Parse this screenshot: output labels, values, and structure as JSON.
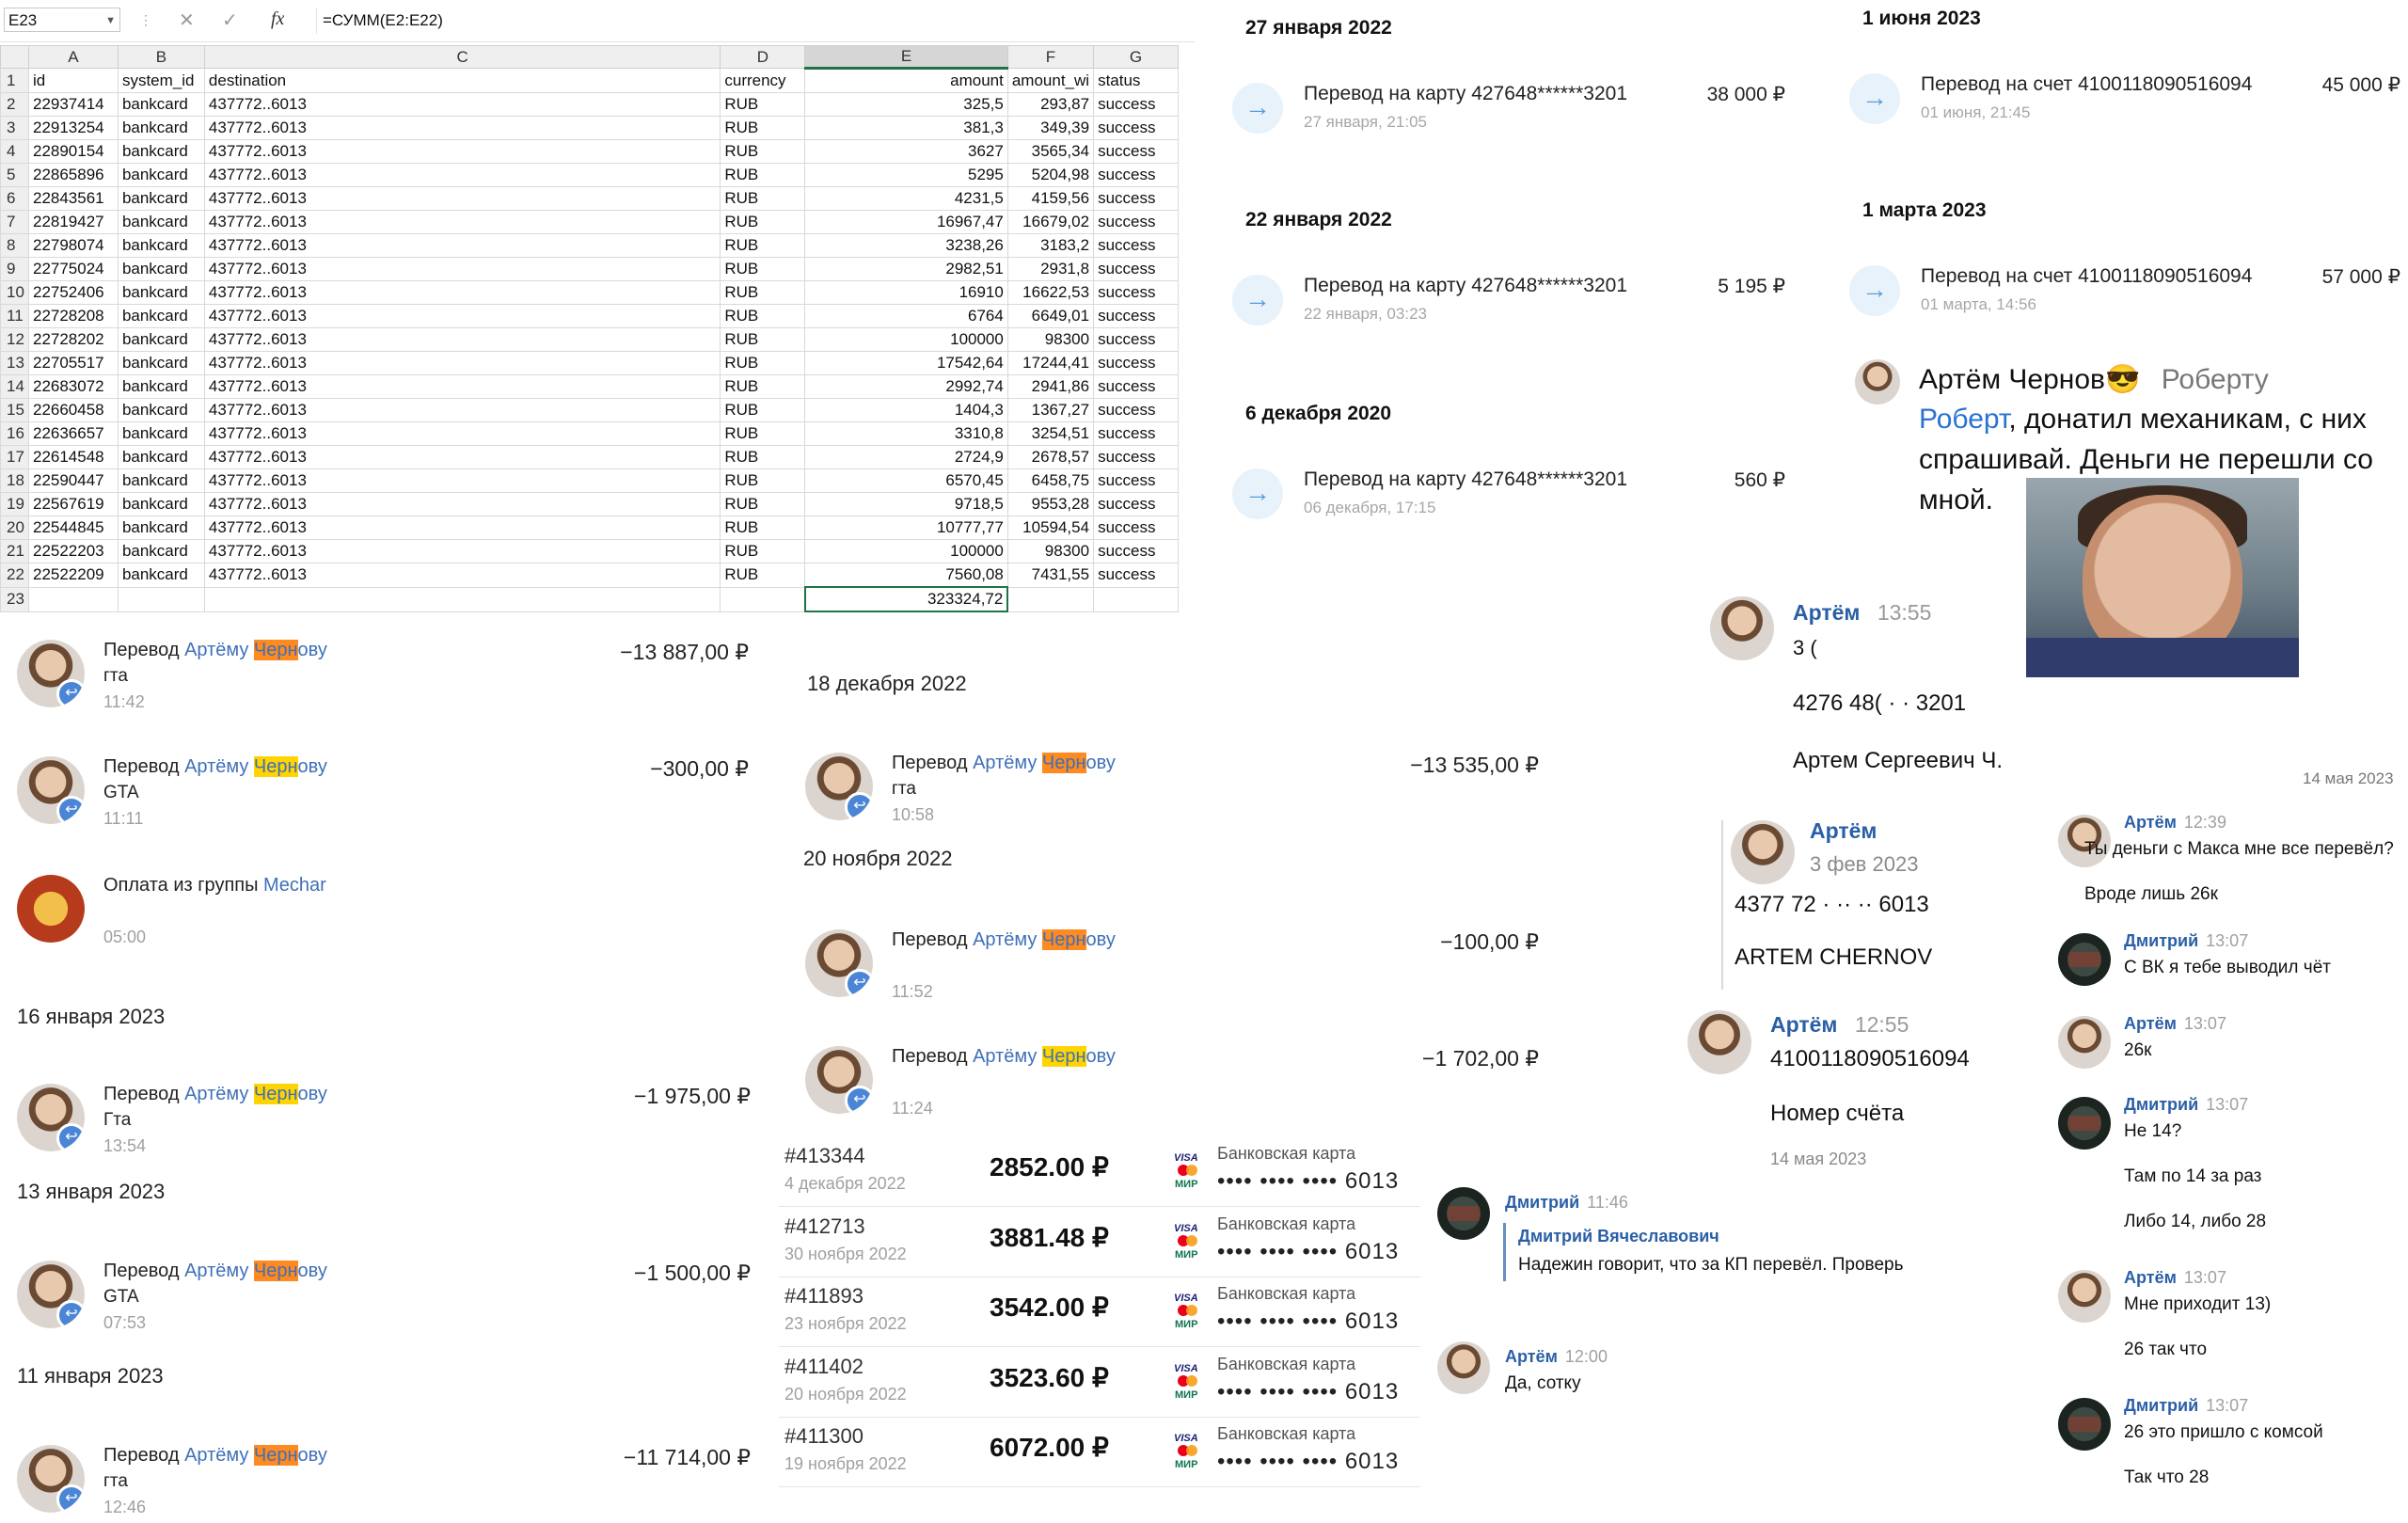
{
  "sheet": {
    "cell_ref": "E23",
    "formula": "=СУММ(E2:E22)",
    "col_letters": [
      "A",
      "B",
      "C",
      "D",
      "E",
      "F",
      "G"
    ],
    "headers": [
      "id",
      "system_id",
      "destination",
      "currency",
      "amount",
      "amount_wi",
      "status"
    ],
    "rows": [
      [
        "22937414",
        "bankcard",
        "437772..6013",
        "RUB",
        "325,5",
        "293,87",
        "success"
      ],
      [
        "22913254",
        "bankcard",
        "437772..6013",
        "RUB",
        "381,3",
        "349,39",
        "success"
      ],
      [
        "22890154",
        "bankcard",
        "437772..6013",
        "RUB",
        "3627",
        "3565,34",
        "success"
      ],
      [
        "22865896",
        "bankcard",
        "437772..6013",
        "RUB",
        "5295",
        "5204,98",
        "success"
      ],
      [
        "22843561",
        "bankcard",
        "437772..6013",
        "RUB",
        "4231,5",
        "4159,56",
        "success"
      ],
      [
        "22819427",
        "bankcard",
        "437772..6013",
        "RUB",
        "16967,47",
        "16679,02",
        "success"
      ],
      [
        "22798074",
        "bankcard",
        "437772..6013",
        "RUB",
        "3238,26",
        "3183,2",
        "success"
      ],
      [
        "22775024",
        "bankcard",
        "437772..6013",
        "RUB",
        "2982,51",
        "2931,8",
        "success"
      ],
      [
        "22752406",
        "bankcard",
        "437772..6013",
        "RUB",
        "16910",
        "16622,53",
        "success"
      ],
      [
        "22728208",
        "bankcard",
        "437772..6013",
        "RUB",
        "6764",
        "6649,01",
        "success"
      ],
      [
        "22728202",
        "bankcard",
        "437772..6013",
        "RUB",
        "100000",
        "98300",
        "success"
      ],
      [
        "22705517",
        "bankcard",
        "437772..6013",
        "RUB",
        "17542,64",
        "17244,41",
        "success"
      ],
      [
        "22683072",
        "bankcard",
        "437772..6013",
        "RUB",
        "2992,74",
        "2941,86",
        "success"
      ],
      [
        "22660458",
        "bankcard",
        "437772..6013",
        "RUB",
        "1404,3",
        "1367,27",
        "success"
      ],
      [
        "22636657",
        "bankcard",
        "437772..6013",
        "RUB",
        "3310,8",
        "3254,51",
        "success"
      ],
      [
        "22614548",
        "bankcard",
        "437772..6013",
        "RUB",
        "2724,9",
        "2678,57",
        "success"
      ],
      [
        "22590447",
        "bankcard",
        "437772..6013",
        "RUB",
        "6570,45",
        "6458,75",
        "success"
      ],
      [
        "22567619",
        "bankcard",
        "437772..6013",
        "RUB",
        "9718,5",
        "9553,28",
        "success"
      ],
      [
        "22544845",
        "bankcard",
        "437772..6013",
        "RUB",
        "10777,77",
        "10594,54",
        "success"
      ],
      [
        "22522203",
        "bankcard",
        "437772..6013",
        "RUB",
        "100000",
        "98300",
        "success"
      ],
      [
        "22522209",
        "bankcard",
        "437772..6013",
        "RUB",
        "7560,08",
        "7431,55",
        "success"
      ]
    ],
    "total": "323324,72"
  },
  "statements": [
    {
      "date": "27 января 2022",
      "title": "Перевод на карту 427648******3201",
      "sub": "27 января, 21:05",
      "amount": "38 000 ₽"
    },
    {
      "date": "22 января 2022",
      "title": "Перевод на карту 427648******3201",
      "sub": "22 января, 03:23",
      "amount": "5 195 ₽"
    },
    {
      "date": "6 декабря 2020",
      "title": "Перевод на карту 427648******3201",
      "sub": "06 декабря, 17:15",
      "amount": "560 ₽"
    },
    {
      "date": "1 июня 2023",
      "title": "Перевод на счет 4100118090516094",
      "sub": "01 июня, 21:45",
      "amount": "45 000 ₽"
    },
    {
      "date": "1 марта 2023",
      "title": "Перевод на счет 4100118090516094",
      "sub": "01 марта, 14:56",
      "amount": "57 000 ₽"
    }
  ],
  "chat_big": {
    "sender": "Артём Чернов",
    "emoji": "😎",
    "to": "Роберту",
    "line1_name": "Роберт",
    "line1_rest": ", донатил механикам, с них",
    "line2": "спрашивай. Деньги не перешли со",
    "line3": "мной.",
    "msg1_name": "Артём",
    "msg1_time": "13:55",
    "msg1_partial": "3 (",
    "msg1_card": "4276 48(   ·   ·  3201",
    "msg1_holder": "Артем Сергеевич Ч.",
    "date_right": "14 мая 2023",
    "msg2_name": "Артём",
    "msg2_date": "3 фев 2023",
    "msg2_card": "4377 72  ·  ·· ·· 6013",
    "msg2_holder": "ARTEM CHERNOV",
    "msg3_name": "Артём",
    "msg3_time": "12:55",
    "msg3_acc": "4100118090516094",
    "msg3_text": "Номер счёта",
    "msg3_date": "14 мая 2023"
  },
  "left_list": [
    {
      "pre": "Перевод ",
      "name1": "Артёму ",
      "hl": "Черн",
      "post": "ову",
      "sub": "гта",
      "time": "11:42",
      "amount": "−13 887,00 ₽",
      "hlcolor": "orange"
    },
    {
      "pre": "Перевод ",
      "name1": "Артёму ",
      "hl": "Черн",
      "post": "ову",
      "sub": "GTA",
      "time": "11:11",
      "amount": "−300,00 ₽",
      "hlcolor": "yellow"
    },
    {
      "pre": "Оплата из группы ",
      "name1": "Mechar",
      "hl": "",
      "post": "",
      "sub": "",
      "time": "05:00",
      "amount": "",
      "hlcolor": "none"
    }
  ],
  "left_dates": {
    "d1": "16 января 2023",
    "d2": "13 января 2023",
    "d3": "11 января 2023"
  },
  "left_list2": [
    {
      "pre": "Перевод ",
      "name1": "Артёму ",
      "hl": "Черн",
      "post": "ову",
      "sub": "Гта",
      "time": "13:54",
      "amount": "−1 975,00 ₽",
      "hlcolor": "yellow"
    },
    {
      "pre": "Перевод ",
      "name1": "Артёму ",
      "hl": "Черн",
      "post": "ову",
      "sub": "GTA",
      "time": "07:53",
      "amount": "−1 500,00 ₽",
      "hlcolor": "orange"
    },
    {
      "pre": "Перевод ",
      "name1": "Артёму ",
      "hl": "Черн",
      "post": "ову",
      "sub": "гта",
      "time": "12:46",
      "amount": "−11 714,00 ₽",
      "hlcolor": "orange"
    }
  ],
  "mid_dates": {
    "d1": "18 декабря 2022",
    "d2": "20 ноября 2022"
  },
  "mid_list": [
    {
      "pre": "Перевод ",
      "name1": "Артёму ",
      "hl": "Черн",
      "post": "ову",
      "sub": "гта",
      "time": "10:58",
      "amount": "−13 535,00 ₽",
      "hlcolor": "orange"
    },
    {
      "pre": "Перевод ",
      "name1": "Артёму ",
      "hl": "Черн",
      "post": "ову",
      "sub": "",
      "time": "11:52",
      "amount": "−100,00 ₽",
      "hlcolor": "orange"
    },
    {
      "pre": "Перевод ",
      "name1": "Артёму ",
      "hl": "Черн",
      "post": "ову",
      "sub": "",
      "time": "11:24",
      "amount": "−1 702,00 ₽",
      "hlcolor": "yellow"
    }
  ],
  "orders": [
    {
      "id": "#413344",
      "date": "4 декабря 2022",
      "amount": "2852.00 ₽",
      "card": "Банковская карта",
      "num": "•••• •••• •••• 6013"
    },
    {
      "id": "#412713",
      "date": "30 ноября 2022",
      "amount": "3881.48 ₽",
      "card": "Банковская карта",
      "num": "•••• •••• •••• 6013"
    },
    {
      "id": "#411893",
      "date": "23 ноября 2022",
      "amount": "3542.00 ₽",
      "card": "Банковская карта",
      "num": "•••• •••• •••• 6013"
    },
    {
      "id": "#411402",
      "date": "20 ноября 2022",
      "amount": "3523.60 ₽",
      "card": "Банковская карта",
      "num": "•••• •••• •••• 6013"
    },
    {
      "id": "#411300",
      "date": "19 ноября 2022",
      "amount": "6072.00 ₽",
      "card": "Банковская карта",
      "num": "•••• •••• •••• 6013"
    }
  ],
  "chat_small_left": {
    "m1_name": "Дмитрий",
    "m1_time": "11:46",
    "m1_quote_name": "Дмитрий Вячеславович",
    "m1_text": "Надежин говорит, что за КП перевёл. Проверь",
    "m2_name": "Артём",
    "m2_time": "12:00",
    "m2_text": "Да, сотку"
  },
  "chat_small_right": [
    {
      "name": "Артём",
      "time": "12:39",
      "text": "Ты деньги с Макса мне все перевёл?",
      "extra": "Вроде лишь 26к",
      "dark": false
    },
    {
      "name": "Дмитрий",
      "time": "13:07",
      "text": "С ВК я тебе выводил чёт",
      "extra": "",
      "dark": true
    },
    {
      "name": "Артём",
      "time": "13:07",
      "text": "26к",
      "extra": "",
      "dark": false
    },
    {
      "name": "Дмитрий",
      "time": "13:07",
      "text": "Не 14?",
      "extra": "Там по 14 за раз",
      "extra2": "Либо 14, либо 28",
      "dark": true
    },
    {
      "name": "Артём",
      "time": "13:07",
      "text": "Мне приходит 13)",
      "extra": "26 так что",
      "dark": false
    },
    {
      "name": "Дмитрий",
      "time": "13:07",
      "text": "26 это пришло с комсой",
      "extra": "Так что 28",
      "dark": true
    }
  ]
}
